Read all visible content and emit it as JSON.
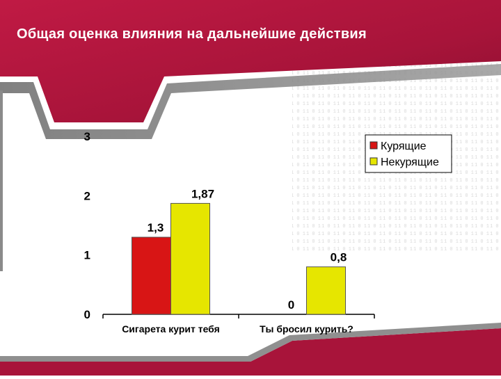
{
  "slide": {
    "title": "Общая оценка влияния на дальнейшие действия"
  },
  "colors": {
    "banner": "#a8143a",
    "banner_dark": "#7a0c29",
    "smokers": "#d81515",
    "nonsmokers": "#e6e600"
  },
  "chart_data": {
    "type": "bar",
    "categories": [
      "Сигарета курит тебя",
      "Ты бросил курить?"
    ],
    "series": [
      {
        "name": "Курящие",
        "values": [
          1.3,
          0
        ],
        "labels": [
          "1,3",
          "0"
        ],
        "color": "#d81515"
      },
      {
        "name": "Некурящие",
        "values": [
          1.87,
          0.8
        ],
        "labels": [
          "1,87",
          "0,8"
        ],
        "color": "#e6e600"
      }
    ],
    "y_ticks": [
      "0",
      "1",
      "2",
      "3"
    ],
    "ylim": [
      0,
      3
    ],
    "grid": false,
    "legend": "top-right"
  }
}
